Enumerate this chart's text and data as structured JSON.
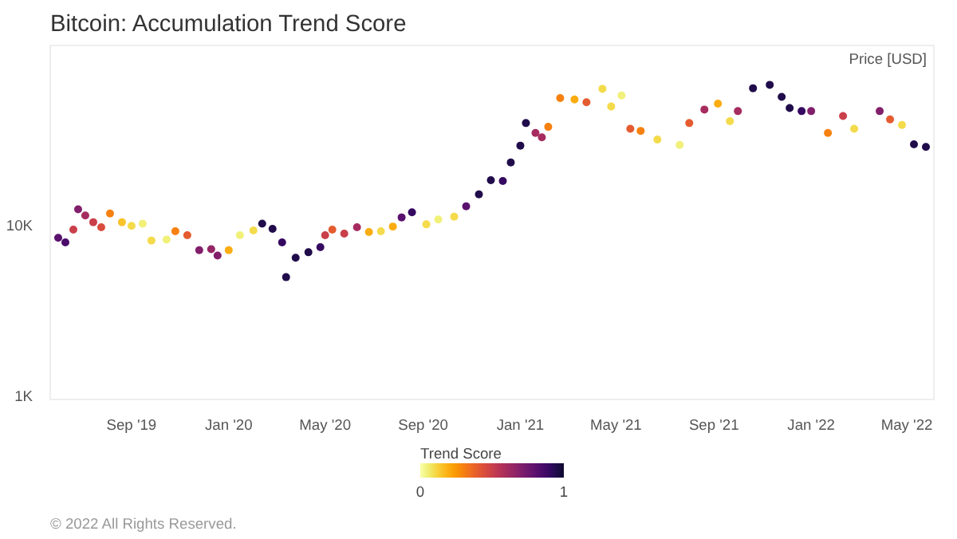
{
  "chart_data": {
    "type": "scatter",
    "title": "Bitcoin: Accumulation Trend Score",
    "clabel": "Trend Score",
    "clim": [
      0,
      1
    ],
    "cticks": [
      0,
      1
    ],
    "log": "y",
    "grid": false,
    "legend": "top right",
    "marker": "circle",
    "xlim": [
      "2019-05-22",
      "2022-06-04"
    ],
    "xticks": [
      {
        "value": "2019-09-01",
        "label": "Sep '19"
      },
      {
        "value": "2020-01-01",
        "label": "Jan '20"
      },
      {
        "value": "2020-05-01",
        "label": "May '20"
      },
      {
        "value": "2020-09-01",
        "label": "Sep '20"
      },
      {
        "value": "2021-01-01",
        "label": "Jan '21"
      },
      {
        "value": "2021-05-01",
        "label": "May '21"
      },
      {
        "value": "2021-09-01",
        "label": "Sep '21"
      },
      {
        "value": "2022-01-01",
        "label": "Jan '22"
      },
      {
        "value": "2022-05-01",
        "label": "May '22"
      }
    ],
    "ylim": [
      960,
      114000
    ],
    "yticks": [
      {
        "value": 1000,
        "label": "1K"
      },
      {
        "value": 10000,
        "label": "10K"
      }
    ],
    "x": [
      "2019-06-01",
      "2019-06-10",
      "2019-06-20",
      "2019-06-26",
      "2019-07-05",
      "2019-07-15",
      "2019-07-25",
      "2019-08-05",
      "2019-08-20",
      "2019-09-01",
      "2019-09-15",
      "2019-09-26",
      "2019-10-15",
      "2019-10-26",
      "2019-11-10",
      "2019-11-25",
      "2019-12-10",
      "2019-12-18",
      "2020-01-01",
      "2020-01-15",
      "2020-02-01",
      "2020-02-12",
      "2020-02-25",
      "2020-03-08",
      "2020-03-13",
      "2020-03-25",
      "2020-04-10",
      "2020-04-25",
      "2020-05-01",
      "2020-05-10",
      "2020-05-25",
      "2020-06-10",
      "2020-06-25",
      "2020-07-10",
      "2020-07-25",
      "2020-08-05",
      "2020-08-18",
      "2020-09-05",
      "2020-09-20",
      "2020-10-10",
      "2020-10-25",
      "2020-11-10",
      "2020-11-25",
      "2020-12-10",
      "2020-12-20",
      "2021-01-01",
      "2021-01-08",
      "2021-01-20",
      "2021-01-28",
      "2021-02-05",
      "2021-02-20",
      "2021-03-10",
      "2021-03-25",
      "2021-04-14",
      "2021-04-25",
      "2021-05-08",
      "2021-05-19",
      "2021-06-01",
      "2021-06-22",
      "2021-07-20",
      "2021-08-01",
      "2021-08-20",
      "2021-09-06",
      "2021-09-21",
      "2021-10-01",
      "2021-10-20",
      "2021-11-10",
      "2021-11-25",
      "2021-12-05",
      "2021-12-20",
      "2022-01-01",
      "2022-01-22",
      "2022-02-10",
      "2022-02-24",
      "2022-03-28",
      "2022-04-10",
      "2022-04-25",
      "2022-05-10",
      "2022-05-25"
    ],
    "series": [
      {
        "name": "Price [USD]",
        "values": [
          8500,
          8000,
          9500,
          12500,
          11500,
          10500,
          9800,
          11800,
          10500,
          10000,
          10300,
          8200,
          8300,
          9300,
          8800,
          7200,
          7300,
          6700,
          7200,
          8800,
          9400,
          10300,
          9600,
          8000,
          5000,
          6500,
          7000,
          7500,
          8800,
          9500,
          9000,
          9800,
          9200,
          9300,
          9900,
          11200,
          12000,
          10200,
          10900,
          11300,
          13000,
          15300,
          18500,
          18300,
          23500,
          29500,
          40000,
          35000,
          33000,
          38000,
          56000,
          55000,
          53000,
          63500,
          50000,
          58000,
          37000,
          36000,
          32000,
          29800,
          40000,
          48000,
          52000,
          41000,
          47000,
          64000,
          67000,
          57000,
          49000,
          47000,
          47000,
          35000,
          44000,
          37000,
          47000,
          42000,
          39000,
          30000,
          29000
        ],
        "cvalues": [
          0.8,
          0.85,
          0.5,
          0.7,
          0.6,
          0.5,
          0.45,
          0.3,
          0.15,
          0.1,
          0.05,
          0.1,
          0.05,
          0.3,
          0.4,
          0.7,
          0.65,
          0.7,
          0.2,
          0.05,
          0.1,
          0.95,
          0.95,
          0.9,
          0.95,
          0.95,
          0.95,
          0.9,
          0.5,
          0.4,
          0.5,
          0.6,
          0.2,
          0.1,
          0.2,
          0.8,
          0.9,
          0.1,
          0.05,
          0.1,
          0.8,
          0.95,
          0.95,
          0.9,
          0.95,
          0.95,
          0.95,
          0.6,
          0.6,
          0.3,
          0.3,
          0.2,
          0.4,
          0.1,
          0.1,
          0.05,
          0.4,
          0.3,
          0.1,
          0.05,
          0.4,
          0.6,
          0.2,
          0.1,
          0.6,
          0.95,
          0.95,
          0.95,
          0.95,
          0.9,
          0.7,
          0.3,
          0.5,
          0.1,
          0.7,
          0.4,
          0.1,
          0.95,
          0.95
        ]
      }
    ],
    "annotations": [
      "© 2022 All Rights Reserved."
    ]
  }
}
